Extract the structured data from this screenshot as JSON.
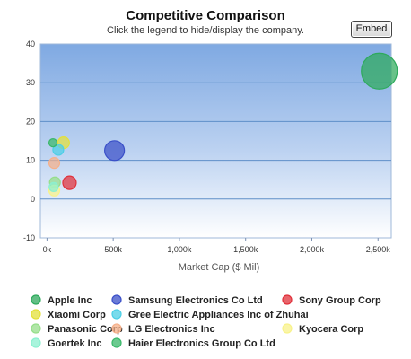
{
  "header": {
    "title": "Competitive Comparison",
    "subtitle": "Click the legend to hide/display the company.",
    "embed_label": "Embed"
  },
  "chart_data": {
    "type": "scatter",
    "title": "Competitive Comparison",
    "subtitle": "Click the legend to hide/display the company.",
    "xlabel": "Market Cap ($ Mil)",
    "ylabel": "",
    "xlim": [
      -50,
      2600
    ],
    "ylim": [
      -10,
      40
    ],
    "xticks": [
      0,
      500,
      1000,
      1500,
      2000,
      2500
    ],
    "xtick_labels": [
      "0k",
      "500k",
      "1,000k",
      "1,500k",
      "2,000k",
      "2,500k"
    ],
    "yticks": [
      -10,
      0,
      10,
      20,
      30,
      40
    ],
    "ytick_labels": [
      "-10",
      "0",
      "10",
      "20",
      "30",
      "40"
    ],
    "grid": "horizontal",
    "legend_position": "bottom",
    "series": [
      {
        "name": "Apple Inc",
        "color": "#2eaa5c",
        "x": 2510,
        "y": 33,
        "size": 20
      },
      {
        "name": "Samsung Electronics Co Ltd",
        "color": "#3a4fc8",
        "x": 510,
        "y": 12.5,
        "size": 11
      },
      {
        "name": "Sony Group Corp",
        "color": "#e0303a",
        "x": 170,
        "y": 4.2,
        "size": 7.5
      },
      {
        "name": "Xiaomi Corp",
        "color": "#e3e03a",
        "x": 125,
        "y": 14.5,
        "size": 6.5
      },
      {
        "name": "Gree Electric Appliances Inc of Zhuhai",
        "color": "#4ccfe6",
        "x": 85,
        "y": 12.7,
        "size": 6
      },
      {
        "name": "Panasonic Corp",
        "color": "#96de8a",
        "x": 60,
        "y": 4.3,
        "size": 6
      },
      {
        "name": "LG Electronics Inc",
        "color": "#f5b08a",
        "x": 55,
        "y": 9.3,
        "size": 6
      },
      {
        "name": "Kyocera Corp",
        "color": "#f8f28a",
        "x": 55,
        "y": 2.2,
        "size": 6
      },
      {
        "name": "Goertek Inc",
        "color": "#8cf0d0",
        "x": 50,
        "y": 3.1,
        "size": 5
      },
      {
        "name": "Haier Electronics Group Co Ltd",
        "color": "#3ab86a",
        "x": 45,
        "y": 14.5,
        "size": 4.5
      }
    ]
  }
}
